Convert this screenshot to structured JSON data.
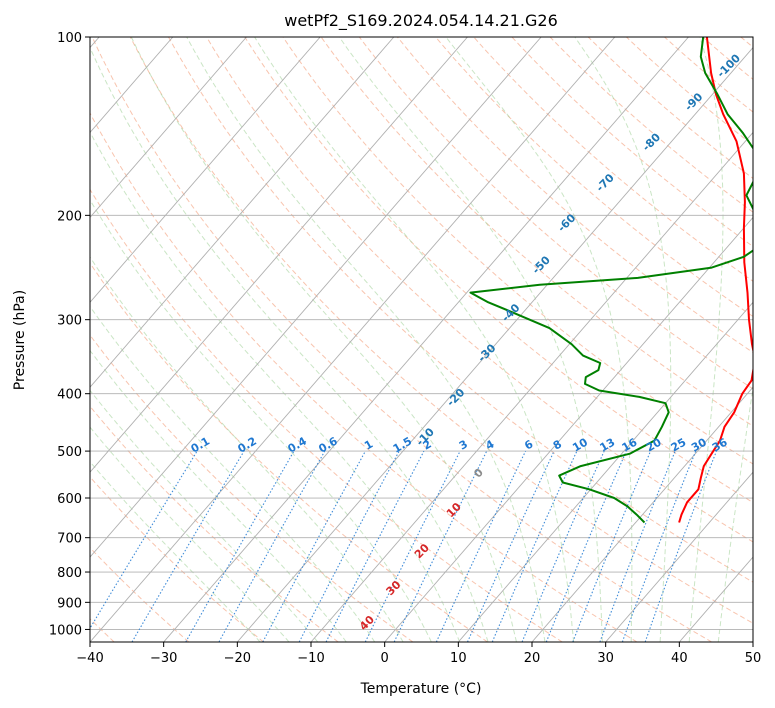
{
  "chart_data": {
    "type": "line",
    "title": "wetPf2_S169.2024.054.14.21.G26",
    "xlabel": "Temperature (°C)",
    "ylabel": "Pressure (hPa)",
    "xlim": [
      -40,
      50
    ],
    "ylim": [
      1050,
      100
    ],
    "y_scale": "log",
    "grid": true,
    "x_ticks": [
      -40,
      -30,
      -20,
      -10,
      0,
      10,
      20,
      30,
      40,
      50
    ],
    "x_tick_labels": [
      "−40",
      "−30",
      "−20",
      "−10",
      "0",
      "10",
      "20",
      "30",
      "40",
      "50"
    ],
    "y_ticks": [
      100,
      200,
      300,
      400,
      500,
      600,
      700,
      800,
      900,
      1000
    ],
    "y_tick_labels": [
      "100",
      "200",
      "300",
      "400",
      "500",
      "600",
      "700",
      "800",
      "900",
      "1000"
    ],
    "series": [
      {
        "color": "#ff0000",
        "points": [
          {
            "p": 660,
            "t": 25.9
          },
          {
            "p": 640,
            "t": 25.3
          },
          {
            "p": 610,
            "t": 24.6
          },
          {
            "p": 580,
            "t": 24.6
          },
          {
            "p": 555,
            "t": 23.6
          },
          {
            "p": 530,
            "t": 22.6
          },
          {
            "p": 505,
            "t": 22.2
          },
          {
            "p": 480,
            "t": 21.8
          },
          {
            "p": 455,
            "t": 20.8
          },
          {
            "p": 430,
            "t": 20.4
          },
          {
            "p": 400,
            "t": 19.3
          },
          {
            "p": 380,
            "t": 19.0
          },
          {
            "p": 350,
            "t": 17.0
          },
          {
            "p": 330,
            "t": 14.8
          },
          {
            "p": 300,
            "t": 11.5
          },
          {
            "p": 270,
            "t": 8.1
          },
          {
            "p": 240,
            "t": 4.1
          },
          {
            "p": 210,
            "t": 0.0
          },
          {
            "p": 190,
            "t": -2.9
          },
          {
            "p": 170,
            "t": -6.4
          },
          {
            "p": 150,
            "t": -11.2
          },
          {
            "p": 135,
            "t": -16.2
          },
          {
            "p": 125,
            "t": -19.5
          },
          {
            "p": 115,
            "t": -22.7
          },
          {
            "p": 100,
            "t": -27.5
          }
        ]
      },
      {
        "color": "#008000",
        "points": [
          {
            "p": 660,
            "t": 21.2
          },
          {
            "p": 640,
            "t": 19.2
          },
          {
            "p": 620,
            "t": 17.0
          },
          {
            "p": 600,
            "t": 14.2
          },
          {
            "p": 580,
            "t": 9.8
          },
          {
            "p": 565,
            "t": 5.4
          },
          {
            "p": 550,
            "t": 4.1
          },
          {
            "p": 530,
            "t": 5.9
          },
          {
            "p": 505,
            "t": 11.1
          },
          {
            "p": 480,
            "t": 12.9
          },
          {
            "p": 455,
            "t": 12.3
          },
          {
            "p": 430,
            "t": 11.5
          },
          {
            "p": 415,
            "t": 10.0
          },
          {
            "p": 405,
            "t": 5.7
          },
          {
            "p": 395,
            "t": -0.5
          },
          {
            "p": 385,
            "t": -3.2
          },
          {
            "p": 375,
            "t": -3.9
          },
          {
            "p": 365,
            "t": -3.0
          },
          {
            "p": 355,
            "t": -3.6
          },
          {
            "p": 345,
            "t": -6.8
          },
          {
            "p": 330,
            "t": -9.7
          },
          {
            "p": 310,
            "t": -14.6
          },
          {
            "p": 290,
            "t": -22.1
          },
          {
            "p": 280,
            "t": -26.1
          },
          {
            "p": 270,
            "t": -29.5
          },
          {
            "p": 262,
            "t": -21.0
          },
          {
            "p": 255,
            "t": -8.5
          },
          {
            "p": 245,
            "t": 0.3
          },
          {
            "p": 235,
            "t": 3.4
          },
          {
            "p": 222,
            "t": 4.6
          },
          {
            "p": 210,
            "t": 2.4
          },
          {
            "p": 195,
            "t": -1.0
          },
          {
            "p": 185,
            "t": -3.5
          },
          {
            "p": 175,
            "t": -4.2
          },
          {
            "p": 165,
            "t": -5.1
          },
          {
            "p": 155,
            "t": -7.8
          },
          {
            "p": 145,
            "t": -11.4
          },
          {
            "p": 135,
            "t": -15.6
          },
          {
            "p": 125,
            "t": -19.3
          },
          {
            "p": 115,
            "t": -23.5
          },
          {
            "p": 108,
            "t": -26.0
          },
          {
            "p": 100,
            "t": -28.0
          }
        ]
      }
    ],
    "dry_adiabat_labels_kelvin_offset": [
      "-100",
      "-90",
      "-80",
      "-70",
      "-60",
      "-50",
      "-40",
      "-30",
      "-20",
      "-10",
      "0",
      "10",
      "20",
      "30",
      "40"
    ],
    "mixing_ratio_labels": [
      "0.1",
      "0.2",
      "0.4",
      "0.6",
      "1",
      "1.5",
      "2",
      "3",
      "4",
      "6",
      "8",
      "10",
      "13",
      "16",
      "20",
      "25",
      "30",
      "36"
    ],
    "colors": {
      "isotherm": "#b0b0b0",
      "dry_adiabat": "#f4a582",
      "moist_adiabat": "#a6d49f",
      "mixing_ratio": "#1f78d1",
      "upper_label": "#1f77b4",
      "lower_label": "#d62728"
    }
  }
}
